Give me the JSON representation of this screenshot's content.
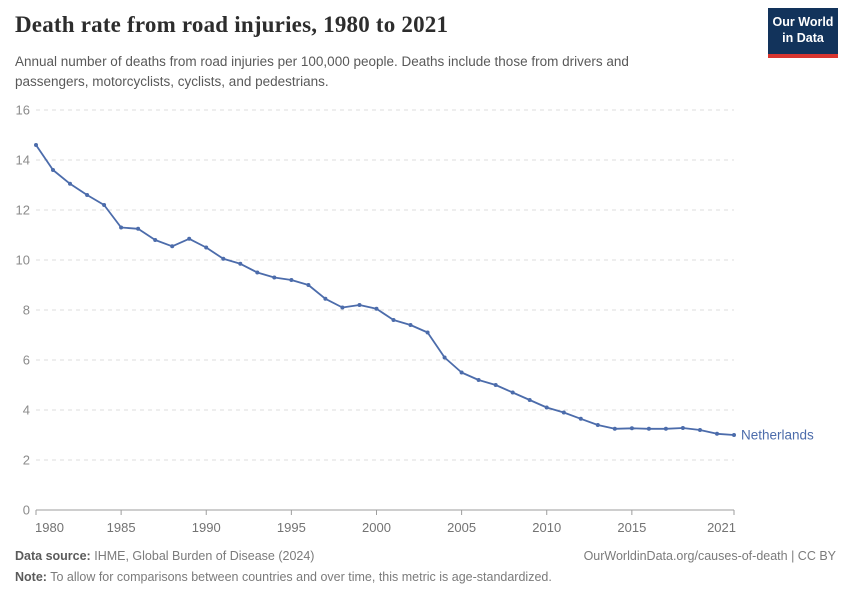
{
  "header": {
    "title": "Death rate from road injuries, 1980 to 2021",
    "subtitle": "Annual number of deaths from road injuries per 100,000 people. Deaths include those from drivers and passengers, motorcyclists, cyclists, and pedestrians.",
    "logo": {
      "line1": "Our World",
      "line2": "in Data",
      "bg_color": "#12335b",
      "accent_color": "#d8352f"
    }
  },
  "chart_data": {
    "type": "line",
    "title": "Death rate from road injuries, 1980 to 2021",
    "xlabel": "",
    "ylabel": "",
    "xlim": [
      1980,
      2021
    ],
    "ylim": [
      0,
      16
    ],
    "yticks": [
      0,
      2,
      4,
      6,
      8,
      10,
      12,
      14,
      16
    ],
    "xticks": [
      1980,
      1985,
      1990,
      1995,
      2000,
      2005,
      2010,
      2015,
      2021
    ],
    "grid": "horizontal-dashed",
    "legend_position": "end-of-line-label",
    "series": [
      {
        "name": "Netherlands",
        "color": "#4c6cab",
        "x": [
          1980,
          1981,
          1982,
          1983,
          1984,
          1985,
          1986,
          1987,
          1988,
          1989,
          1990,
          1991,
          1992,
          1993,
          1994,
          1995,
          1996,
          1997,
          1998,
          1999,
          2000,
          2001,
          2002,
          2003,
          2004,
          2005,
          2006,
          2007,
          2008,
          2009,
          2010,
          2011,
          2012,
          2013,
          2014,
          2015,
          2016,
          2017,
          2018,
          2019,
          2020,
          2021
        ],
        "values": [
          14.6,
          13.6,
          13.05,
          12.6,
          12.2,
          11.3,
          11.25,
          10.8,
          10.55,
          10.85,
          10.5,
          10.05,
          9.85,
          9.5,
          9.3,
          9.2,
          9.0,
          8.45,
          8.1,
          8.2,
          8.05,
          7.6,
          7.4,
          7.1,
          6.1,
          5.5,
          5.2,
          5.0,
          4.7,
          4.4,
          4.1,
          3.9,
          3.65,
          3.4,
          3.25,
          3.27,
          3.25,
          3.25,
          3.28,
          3.2,
          3.05,
          3.0
        ]
      }
    ],
    "colors": {
      "gridline": "#dcdcdc",
      "axis_line": "#9e9e9e",
      "y_tick_label": "#8b8b8b",
      "x_tick_label": "#737373"
    }
  },
  "footer": {
    "source_label": "Data source:",
    "source_text": "IHME, Global Burden of Disease (2024)",
    "link_text": "OurWorldinData.org/causes-of-death | CC BY",
    "note_label": "Note:",
    "note_text": "To allow for comparisons between countries and over time, this metric is age-standardized."
  }
}
